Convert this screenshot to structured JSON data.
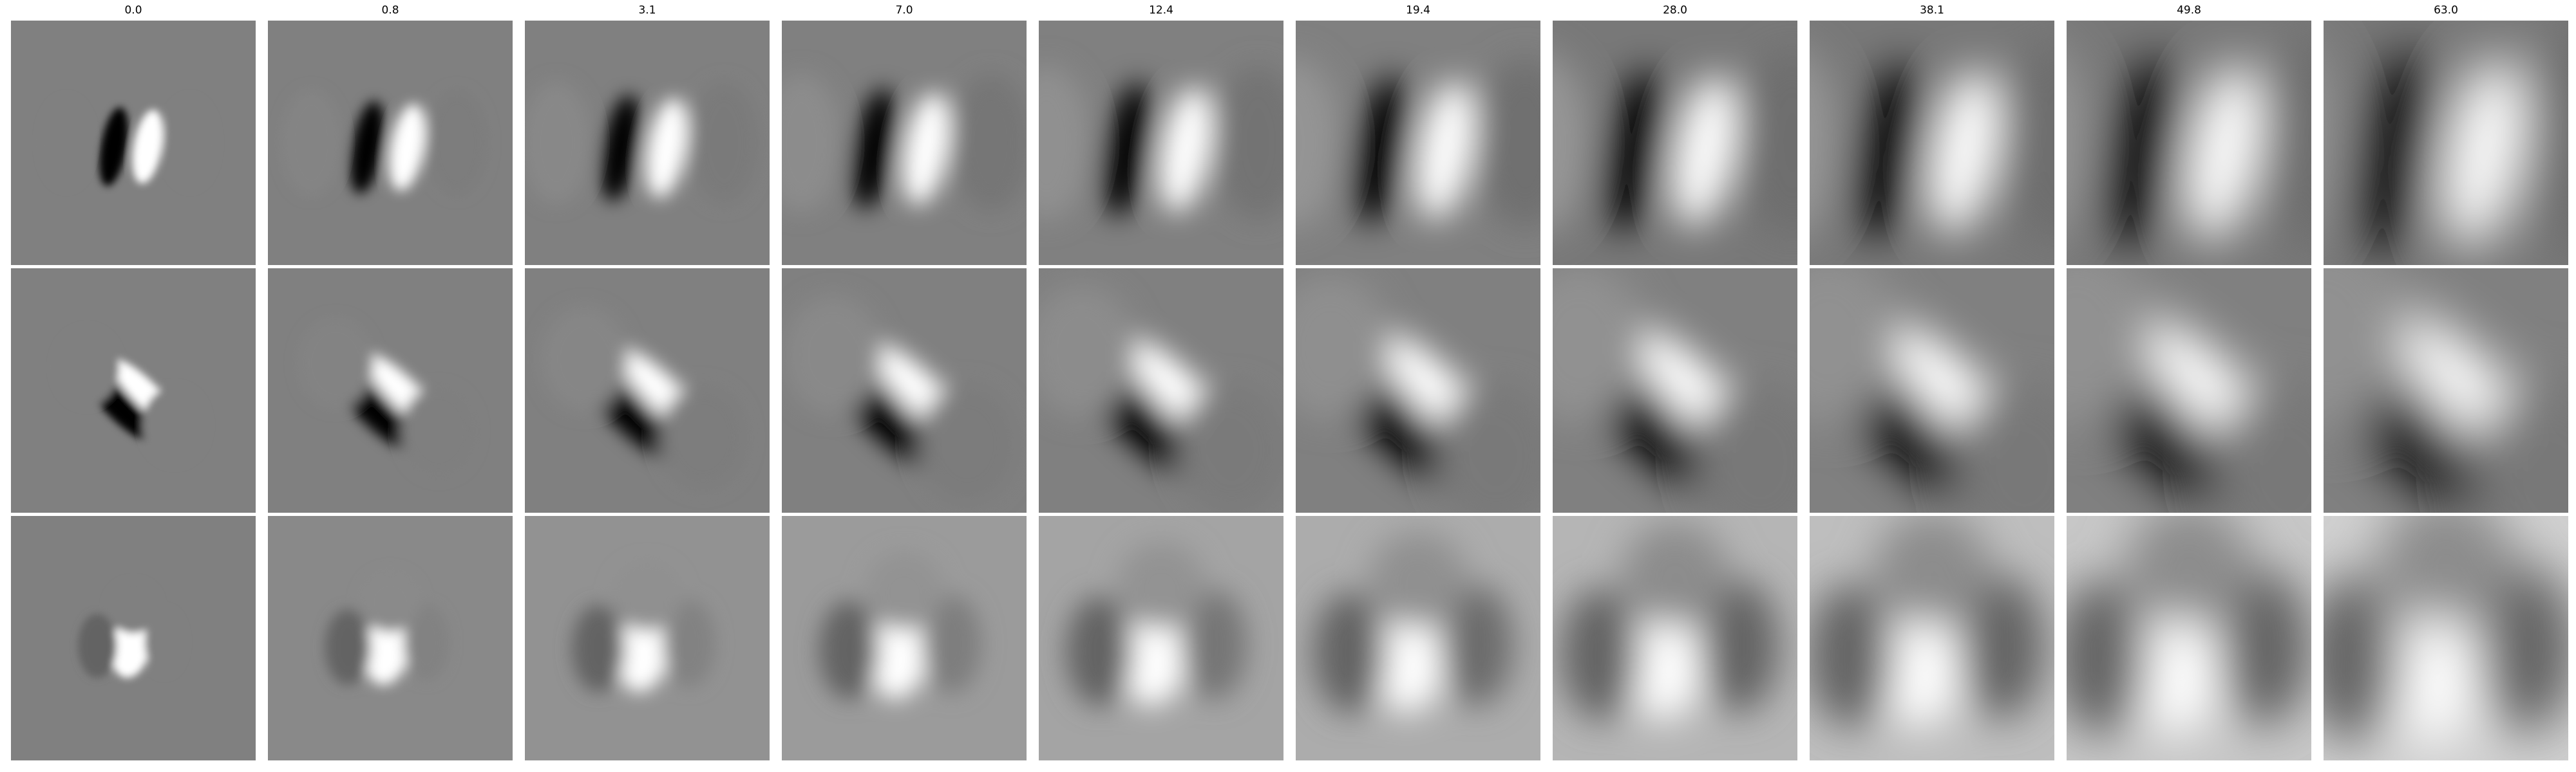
{
  "column_labels": [
    "0.0",
    "0.8",
    "3.1",
    "7.0",
    "12.4",
    "19.4",
    "28.0",
    "38.1",
    "49.8",
    "63.0"
  ],
  "rows": 3,
  "background_gray": "#808080",
  "figure_background": "#ffffff"
}
